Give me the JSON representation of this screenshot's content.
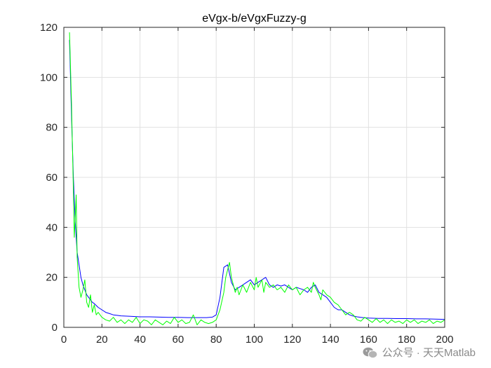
{
  "chart_data": {
    "type": "line",
    "title": "eVgx-b/eVgxFuzzy-g",
    "xlabel": "",
    "ylabel": "",
    "xlim": [
      0,
      200
    ],
    "ylim": [
      0,
      120
    ],
    "xticks": [
      0,
      20,
      40,
      60,
      80,
      100,
      120,
      140,
      160,
      180,
      200
    ],
    "yticks": [
      0,
      20,
      40,
      60,
      80,
      100,
      120
    ],
    "grid": true,
    "series": [
      {
        "color": "#0000ff",
        "x": [
          3,
          4,
          5,
          6,
          7,
          8,
          9,
          10,
          11,
          12,
          13,
          14,
          15,
          16,
          18,
          20,
          22,
          24,
          26,
          28,
          30,
          35,
          40,
          45,
          50,
          55,
          60,
          65,
          70,
          75,
          78,
          80,
          82,
          84,
          86,
          88,
          90,
          92,
          94,
          96,
          98,
          100,
          102,
          104,
          106,
          108,
          110,
          112,
          114,
          116,
          118,
          120,
          122,
          124,
          126,
          128,
          130,
          132,
          134,
          136,
          138,
          140,
          142,
          144,
          146,
          148,
          150,
          152,
          154,
          156,
          158,
          160,
          165,
          170,
          175,
          180,
          185,
          190,
          195,
          200
        ],
        "y": [
          115,
          85,
          60,
          42,
          30,
          25,
          20,
          17,
          15,
          13,
          12,
          11,
          10,
          9.5,
          8,
          7,
          6,
          5.5,
          5,
          4.8,
          4.6,
          4.4,
          4.2,
          4.2,
          4.1,
          4.0,
          4.0,
          3.9,
          3.9,
          3.9,
          4.1,
          5,
          12,
          24,
          25,
          18,
          15,
          16,
          17,
          18,
          19,
          17,
          18,
          19,
          20,
          17,
          16,
          17,
          16.5,
          17,
          16,
          15,
          16,
          15.5,
          15,
          14,
          16,
          17,
          14,
          13,
          12,
          10,
          8,
          7,
          7,
          6,
          5,
          4.5,
          4.2,
          4,
          3.8,
          3.7,
          3.6,
          3.6,
          3.5,
          3.5,
          3.4,
          3.4,
          3.3,
          3.2
        ]
      },
      {
        "color": "#00ff00",
        "x": [
          3,
          4,
          5,
          5.5,
          6,
          6.5,
          7,
          8,
          9,
          10,
          11,
          12,
          13,
          14,
          15,
          16,
          17,
          18,
          20,
          22,
          24,
          26,
          28,
          30,
          32,
          34,
          36,
          38,
          40,
          42,
          44,
          46,
          48,
          50,
          52,
          54,
          56,
          58,
          60,
          62,
          64,
          66,
          68,
          70,
          72,
          74,
          76,
          78,
          80,
          82,
          84,
          85,
          86,
          87,
          88,
          89,
          90,
          91,
          92,
          93,
          94,
          96,
          98,
          100,
          101,
          102,
          104,
          105,
          106,
          108,
          110,
          112,
          114,
          116,
          118,
          120,
          122,
          124,
          126,
          128,
          130,
          131,
          132,
          134,
          135,
          136,
          138,
          140,
          142,
          144,
          146,
          148,
          150,
          152,
          154,
          156,
          158,
          160,
          162,
          164,
          166,
          168,
          170,
          172,
          174,
          176,
          178,
          180,
          182,
          184,
          186,
          188,
          190,
          192,
          194,
          196,
          198,
          200
        ],
        "y": [
          118,
          90,
          55,
          36,
          44,
          53,
          28,
          16,
          12,
          15,
          19,
          10,
          8,
          13,
          6,
          9,
          5,
          6,
          4,
          3,
          2.5,
          4,
          2,
          3,
          1.5,
          3,
          2,
          4,
          1.5,
          3,
          2.5,
          1,
          3,
          2,
          1,
          2.5,
          1.5,
          4,
          2,
          3,
          1.5,
          2,
          5,
          1,
          3,
          2,
          1.5,
          2,
          3,
          7,
          14,
          20,
          23,
          26,
          20,
          17,
          14,
          16,
          13,
          15,
          17,
          14,
          18,
          15,
          20,
          16,
          19,
          14,
          18,
          16,
          17,
          15,
          16,
          14,
          17,
          15,
          16,
          13,
          15,
          16,
          14,
          18,
          16,
          13,
          11,
          15,
          13,
          12,
          10,
          9,
          7,
          5,
          6,
          5,
          3,
          2.5,
          4,
          3,
          2,
          3.5,
          2,
          3,
          1.5,
          3,
          2,
          2.5,
          1.5,
          3,
          2,
          3,
          1.5,
          2.5,
          2,
          3,
          1.5,
          2.5,
          2,
          3
        ]
      }
    ]
  },
  "watermark": {
    "icon": "wechat-icon",
    "text": "公众号 · 天天Matlab"
  }
}
